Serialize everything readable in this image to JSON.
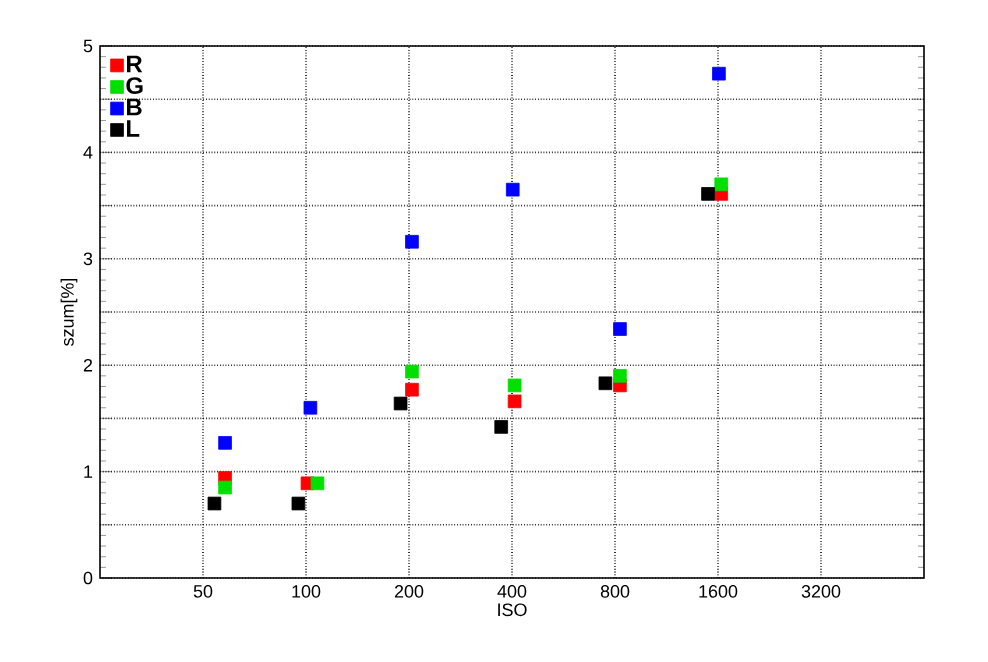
{
  "chart_data": {
    "type": "scatter",
    "xlabel": "ISO",
    "ylabel": "szum[%]",
    "log": "x",
    "xlim": [
      25,
      6400
    ],
    "xticks": [
      50,
      100,
      200,
      400,
      800,
      1600,
      3200
    ],
    "ylim": [
      0,
      5
    ],
    "yticks": [
      0,
      {
        "value": 0.5,
        "label": null
      },
      1,
      {
        "value": 1.5,
        "label": null
      },
      2,
      {
        "value": 2.5,
        "label": null
      },
      3,
      {
        "value": 3.5,
        "label": null
      },
      4,
      {
        "value": 4.5,
        "label": null
      },
      5
    ],
    "grid": true,
    "legend": "top left",
    "marker": "square",
    "series": [
      {
        "name": "R",
        "color": "#ff0000",
        "x": [
          58,
          101,
          204,
          407,
          827,
          1635
        ],
        "values": [
          0.94,
          0.89,
          1.77,
          1.66,
          1.81,
          3.61
        ]
      },
      {
        "name": "G",
        "color": "#00e000",
        "x": [
          58,
          108,
          204,
          407,
          827,
          1635
        ],
        "values": [
          0.85,
          0.89,
          1.94,
          1.81,
          1.9,
          3.7
        ]
      },
      {
        "name": "B",
        "color": "#0000ff",
        "x": [
          58,
          103,
          204,
          402,
          827,
          1610
        ],
        "values": [
          1.27,
          1.6,
          3.16,
          3.65,
          2.34,
          4.74
        ]
      },
      {
        "name": "L",
        "color": "#000000",
        "x": [
          54,
          95,
          189,
          372,
          750,
          1496
        ],
        "values": [
          0.7,
          0.7,
          1.64,
          1.42,
          1.83,
          3.61
        ]
      }
    ]
  }
}
